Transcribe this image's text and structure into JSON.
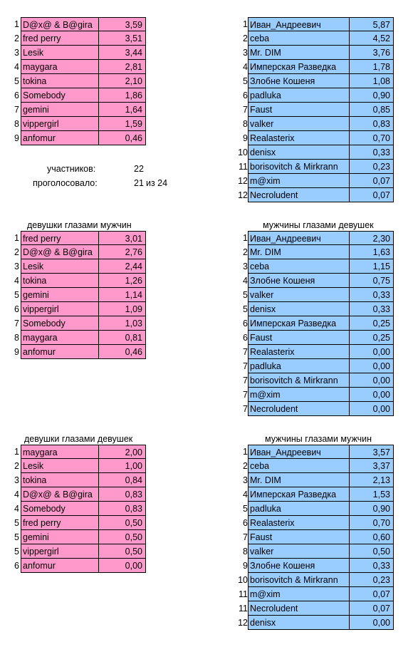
{
  "tables": [
    {
      "id": "overall-women",
      "title": "",
      "color": "pink",
      "rows": [
        {
          "rank": "1",
          "name": "D@x@ & B@gira",
          "value": "3,59"
        },
        {
          "rank": "2",
          "name": "fred perry",
          "value": "3,51"
        },
        {
          "rank": "3",
          "name": "Lesik",
          "value": "3,44"
        },
        {
          "rank": "4",
          "name": "maygara",
          "value": "2,81"
        },
        {
          "rank": "5",
          "name": "tokina",
          "value": "2,10"
        },
        {
          "rank": "6",
          "name": "Somebody",
          "value": "1,86"
        },
        {
          "rank": "7",
          "name": "gemini",
          "value": "1,64"
        },
        {
          "rank": "8",
          "name": "vippergirl",
          "value": "1,59"
        },
        {
          "rank": "9",
          "name": "anfomur",
          "value": "0,46"
        }
      ]
    },
    {
      "id": "overall-men",
      "title": "",
      "color": "blue",
      "rows": [
        {
          "rank": "1",
          "name": "Иван_Андреевич",
          "value": "5,87"
        },
        {
          "rank": "2",
          "name": "ceba",
          "value": "4,52"
        },
        {
          "rank": "3",
          "name": "Mr. DIM",
          "value": "3,76"
        },
        {
          "rank": "4",
          "name": "Имперская Разведка",
          "value": "1,78"
        },
        {
          "rank": "5",
          "name": "Злобне Кошеня",
          "value": "1,08"
        },
        {
          "rank": "6",
          "name": "padluka",
          "value": "0,90"
        },
        {
          "rank": "7",
          "name": "Faust",
          "value": "0,85"
        },
        {
          "rank": "8",
          "name": "valker",
          "value": "0,83"
        },
        {
          "rank": "9",
          "name": "Realasterix",
          "value": "0,70"
        },
        {
          "rank": "10",
          "name": "denisx",
          "value": "0,33"
        },
        {
          "rank": "11",
          "name": "borisovitch & Mirkrann",
          "value": "0,23"
        },
        {
          "rank": "12",
          "name": "m@xim",
          "value": "0,07"
        },
        {
          "rank": "12",
          "name": "Necroludent",
          "value": "0,07"
        }
      ]
    },
    {
      "id": "women-by-men",
      "title": "девушки глазами мужчин",
      "color": "pink",
      "rows": [
        {
          "rank": "1",
          "name": "fred perry",
          "value": "3,01"
        },
        {
          "rank": "2",
          "name": "D@x@ & B@gira",
          "value": "2,76"
        },
        {
          "rank": "3",
          "name": "Lesik",
          "value": "2,44"
        },
        {
          "rank": "4",
          "name": "tokina",
          "value": "1,26"
        },
        {
          "rank": "5",
          "name": "gemini",
          "value": "1,14"
        },
        {
          "rank": "6",
          "name": "vippergirl",
          "value": "1,09"
        },
        {
          "rank": "7",
          "name": "Somebody",
          "value": "1,03"
        },
        {
          "rank": "8",
          "name": "maygara",
          "value": "0,81"
        },
        {
          "rank": "9",
          "name": "anfomur",
          "value": "0,46"
        }
      ]
    },
    {
      "id": "men-by-women",
      "title": "мужчины глазами девушек",
      "color": "blue",
      "rows": [
        {
          "rank": "1",
          "name": "Иван_Андреевич",
          "value": "2,30"
        },
        {
          "rank": "2",
          "name": "Mr. DIM",
          "value": "1,63"
        },
        {
          "rank": "3",
          "name": "ceba",
          "value": "1,15"
        },
        {
          "rank": "4",
          "name": "Злобне Кошеня",
          "value": "0,75"
        },
        {
          "rank": "5",
          "name": "valker",
          "value": "0,33"
        },
        {
          "rank": "5",
          "name": "denisx",
          "value": "0,33"
        },
        {
          "rank": "6",
          "name": "Имперская Разведка",
          "value": "0,25"
        },
        {
          "rank": "6",
          "name": "Faust",
          "value": "0,25"
        },
        {
          "rank": "7",
          "name": "Realasterix",
          "value": "0,00"
        },
        {
          "rank": "7",
          "name": "padluka",
          "value": "0,00"
        },
        {
          "rank": "7",
          "name": "borisovitch & Mirkrann",
          "value": "0,00"
        },
        {
          "rank": "7",
          "name": "m@xim",
          "value": "0,00"
        },
        {
          "rank": "7",
          "name": "Necroludent",
          "value": "0,00"
        }
      ]
    },
    {
      "id": "women-by-women",
      "title": "девушки глазами девушек",
      "color": "pink",
      "rows": [
        {
          "rank": "1",
          "name": "maygara",
          "value": "2,00"
        },
        {
          "rank": "2",
          "name": "Lesik",
          "value": "1,00"
        },
        {
          "rank": "3",
          "name": "tokina",
          "value": "0,84"
        },
        {
          "rank": "4",
          "name": "D@x@ & B@gira",
          "value": "0,83"
        },
        {
          "rank": "4",
          "name": "Somebody",
          "value": "0,83"
        },
        {
          "rank": "5",
          "name": "fred perry",
          "value": "0,50"
        },
        {
          "rank": "5",
          "name": "gemini",
          "value": "0,50"
        },
        {
          "rank": "5",
          "name": "vippergirl",
          "value": "0,50"
        },
        {
          "rank": "6",
          "name": "anfomur",
          "value": "0,00"
        }
      ]
    },
    {
      "id": "men-by-men",
      "title": "мужчины глазами мужчин",
      "color": "blue",
      "rows": [
        {
          "rank": "1",
          "name": "Иван_Андреевич",
          "value": "3,57"
        },
        {
          "rank": "2",
          "name": "ceba",
          "value": "3,37"
        },
        {
          "rank": "3",
          "name": "Mr. DIM",
          "value": "2,13"
        },
        {
          "rank": "4",
          "name": "Имперская Разведка",
          "value": "1,53"
        },
        {
          "rank": "5",
          "name": "padluka",
          "value": "0,90"
        },
        {
          "rank": "6",
          "name": "Realasterix",
          "value": "0,70"
        },
        {
          "rank": "7",
          "name": "Faust",
          "value": "0,60"
        },
        {
          "rank": "8",
          "name": "valker",
          "value": "0,50"
        },
        {
          "rank": "9",
          "name": "Злобне Кошеня",
          "value": "0,33"
        },
        {
          "rank": "10",
          "name": "borisovitch & Mirkrann",
          "value": "0,23"
        },
        {
          "rank": "11",
          "name": "m@xim",
          "value": "0,07"
        },
        {
          "rank": "11",
          "name": "Necroludent",
          "value": "0,07"
        },
        {
          "rank": "12",
          "name": "denisx",
          "value": "0,00"
        }
      ]
    }
  ],
  "stats": {
    "participants_label": "участников:",
    "participants_value": "22",
    "voted_label": "проголосовало:",
    "voted_value": "21",
    "voted_of": "из 24"
  },
  "colors": {
    "pink": "#ff99cc",
    "blue": "#99ccff"
  }
}
